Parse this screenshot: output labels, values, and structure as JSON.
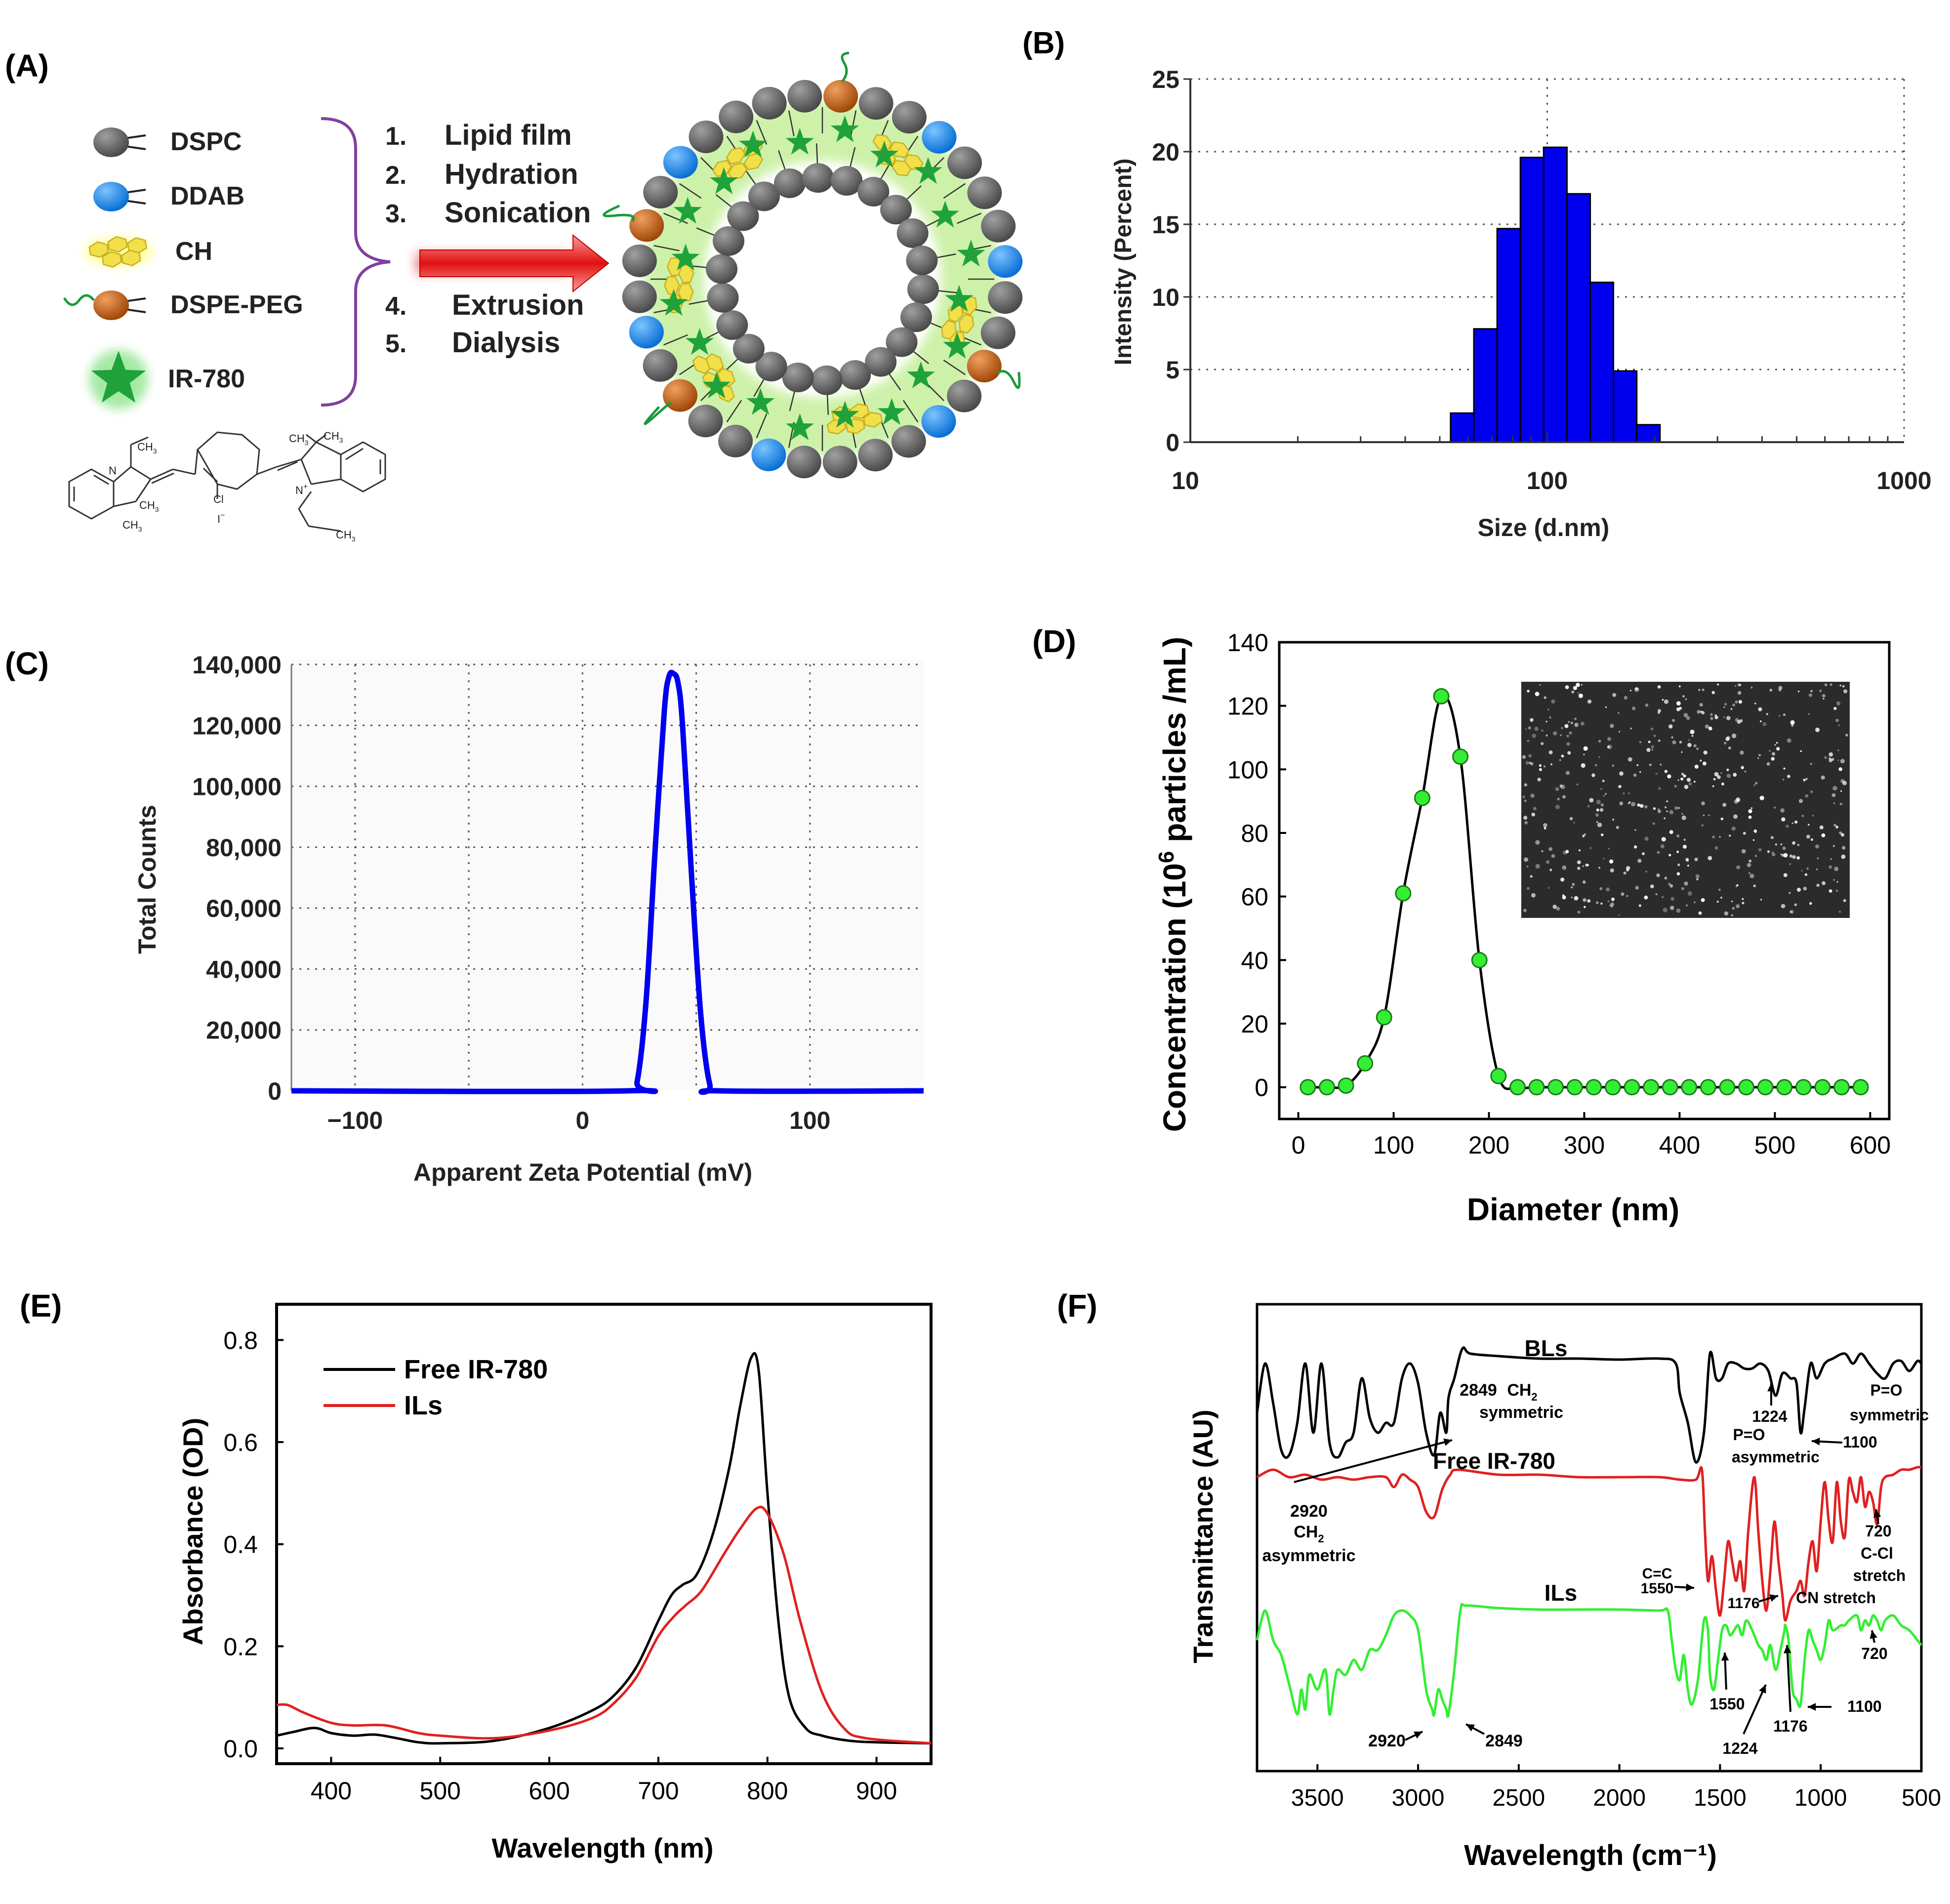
{
  "colors": {
    "blue": "#0000ee",
    "black": "#000000",
    "red": "#e02020",
    "green": "#33ee33",
    "dspc": "#6e6e6e",
    "ddab": "#1e90ff",
    "peg": "#c05a10",
    "ch": "#f2e04a",
    "star": "#1fa23a",
    "bracket": "#8040a0",
    "arrow": "#e01818"
  },
  "panelA": {
    "label": "(A)",
    "legend": [
      {
        "label": "DSPC",
        "icon": "gray-lipid-icon"
      },
      {
        "label": "DDAB",
        "icon": "blue-lipid-icon"
      },
      {
        "label": "CH",
        "icon": "cholesterol-icon"
      },
      {
        "label": "DSPE-PEG",
        "icon": "peg-lipid-icon"
      },
      {
        "label": "IR-780",
        "icon": "star-icon"
      }
    ],
    "steps": [
      {
        "num": "1.",
        "text": "Lipid film"
      },
      {
        "num": "2.",
        "text": "Hydration"
      },
      {
        "num": "3.",
        "text": "Sonication"
      },
      {
        "num": "4.",
        "text": "Extrusion"
      },
      {
        "num": "5.",
        "text": "Dialysis"
      }
    ],
    "structure_labels": {
      "ch3_a": "CH",
      "ch3_b": "CH",
      "ch3_c": "CH",
      "ch3_d": "CH",
      "ch3_e": "CH",
      "ch3_f": "CH",
      "ch3_g": "CH",
      "n1": "N",
      "n2": "N",
      "plus": "+",
      "cl": "Cl",
      "iodide": "I",
      "minus": "−"
    }
  },
  "chart_data": [
    {
      "id": "B",
      "type": "bar",
      "label": "(B)",
      "title": "",
      "xlabel": "Size (d.nm)",
      "ylabel": "Intensity (Percent)",
      "xscale": "log",
      "xlim": [
        10,
        1000
      ],
      "ylim": [
        0,
        25
      ],
      "yticks": [
        "0",
        "5",
        "10",
        "15",
        "20",
        "25"
      ],
      "xticks": [
        "10",
        "100",
        "1000"
      ],
      "bin_edges": [
        53.6,
        62.3,
        72.4,
        84.1,
        97.7,
        113.6,
        132.0,
        153.3,
        178.2,
        207.0
      ],
      "values": [
        2.0,
        7.8,
        14.7,
        19.6,
        20.3,
        17.1,
        11.0,
        4.9,
        1.2
      ]
    },
    {
      "id": "C",
      "type": "line",
      "label": "(C)",
      "xlabel": "Apparent Zeta Potential (mV)",
      "ylabel": "Total Counts",
      "xlim": [
        -128,
        150
      ],
      "ylim": [
        0,
        140000
      ],
      "yticks": [
        "0",
        "20,000",
        "40,000",
        "60,000",
        "80,000",
        "100,000",
        "120,000",
        "140,000"
      ],
      "xticks": [
        "−100",
        "0",
        "100"
      ],
      "peak_mV": 40,
      "peak_counts": 137000,
      "x": [
        -128,
        20,
        24,
        28,
        32,
        36,
        38,
        40,
        42,
        44,
        48,
        52,
        56,
        60,
        150
      ],
      "y": [
        0,
        0,
        3000,
        30000,
        80000,
        125000,
        136000,
        137000,
        134000,
        120000,
        70000,
        25000,
        2000,
        0,
        0
      ]
    },
    {
      "id": "D",
      "type": "scatter",
      "label": "(D)",
      "xlabel": "Diameter (nm)",
      "ylabel_main": "Concentration (10",
      "ylabel_sup": "6",
      "ylabel_tail": " particles /mL)",
      "xlim": [
        -20,
        620
      ],
      "ylim": [
        -10,
        140
      ],
      "xticks": [
        "0",
        "100",
        "200",
        "300",
        "400",
        "500",
        "600"
      ],
      "yticks": [
        "0",
        "20",
        "40",
        "60",
        "80",
        "100",
        "120",
        "140"
      ],
      "x": [
        10,
        30,
        50,
        70,
        90,
        110,
        130,
        150,
        170,
        190,
        210,
        230,
        250,
        270,
        290,
        310,
        330,
        350,
        370,
        390,
        410,
        430,
        450,
        470,
        490,
        510,
        530,
        550,
        570,
        590
      ],
      "y": [
        0,
        0,
        0.5,
        7.5,
        22,
        61,
        91,
        123,
        104,
        40,
        3.5,
        0,
        0,
        0,
        0,
        0,
        0,
        0,
        0,
        0,
        0,
        0,
        0,
        0,
        0,
        0,
        0,
        0,
        0,
        0
      ]
    },
    {
      "id": "E",
      "type": "line",
      "label": "(E)",
      "xlabel": "Wavelength (nm)",
      "ylabel": "Absorbance (OD)",
      "xlim": [
        350,
        950
      ],
      "ylim": [
        -0.03,
        0.87
      ],
      "xticks": [
        "400",
        "500",
        "600",
        "700",
        "800",
        "900"
      ],
      "yticks": [
        "0.0",
        "0.2",
        "0.4",
        "0.6",
        "0.8"
      ],
      "series": [
        {
          "name": "Free IR-780",
          "x": [
            350,
            365,
            385,
            400,
            420,
            440,
            460,
            480,
            500,
            550,
            600,
            640,
            660,
            680,
            700,
            712,
            722,
            735,
            750,
            765,
            775,
            785,
            792,
            800,
            810,
            820,
            835,
            850,
            875,
            900,
            950
          ],
          "y": [
            0.025,
            0.032,
            0.04,
            0.03,
            0.025,
            0.027,
            0.02,
            0.012,
            0.01,
            0.015,
            0.04,
            0.075,
            0.105,
            0.16,
            0.25,
            0.3,
            0.32,
            0.34,
            0.42,
            0.55,
            0.67,
            0.765,
            0.74,
            0.5,
            0.25,
            0.1,
            0.04,
            0.025,
            0.015,
            0.012,
            0.01
          ]
        },
        {
          "name": "ILs",
          "x": [
            350,
            360,
            375,
            400,
            420,
            450,
            480,
            500,
            550,
            600,
            640,
            660,
            680,
            700,
            715,
            725,
            740,
            760,
            775,
            790,
            800,
            815,
            830,
            850,
            870,
            890,
            950
          ],
          "y": [
            0.085,
            0.085,
            0.07,
            0.05,
            0.045,
            0.045,
            0.03,
            0.025,
            0.02,
            0.035,
            0.06,
            0.09,
            0.14,
            0.22,
            0.26,
            0.28,
            0.31,
            0.38,
            0.43,
            0.47,
            0.46,
            0.38,
            0.25,
            0.11,
            0.04,
            0.02,
            0.01
          ]
        }
      ]
    },
    {
      "id": "F",
      "type": "line",
      "label": "(F)",
      "xlabel": "Wavelength (cm⁻¹)",
      "ylabel": "Transmittance (AU)",
      "xlim": [
        3800,
        500
      ],
      "xticks": [
        "3500",
        "3000",
        "2500",
        "2000",
        "1500",
        "1000",
        "500"
      ],
      "series": [
        {
          "name": "BLs",
          "color": "black"
        },
        {
          "name": "Free IR-780",
          "color": "red"
        },
        {
          "name": "ILs",
          "color": "green"
        }
      ],
      "annotations": [
        "2849",
        "CH",
        "symmetric",
        "2920",
        "CH",
        "asymmetric",
        "1224",
        "P=O",
        "asymmetric",
        "P=O",
        "symmetric",
        "1100",
        "720",
        "C-Cl",
        "stretch",
        "C=C",
        "1550",
        "1176",
        "CN stretch",
        "720",
        "1550",
        "1224",
        "1176",
        "1100",
        "2920",
        "2849"
      ],
      "sub2": "2"
    }
  ]
}
